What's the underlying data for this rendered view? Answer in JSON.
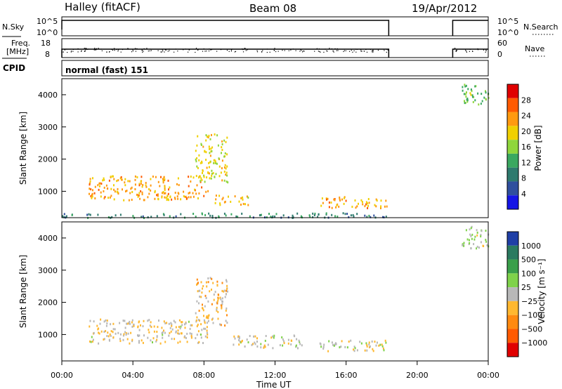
{
  "header": {
    "site": "Halley (fitACF)",
    "beam": "Beam 08",
    "date": "19/Apr/2012"
  },
  "panels": {
    "nsky": {
      "left_label": "N.Sky",
      "right_label": "N.Search",
      "left_ticks": [
        "10^5",
        "10^0"
      ],
      "right_ticks": [
        "10^5",
        "10^0"
      ]
    },
    "freq": {
      "left_label_1": "Freq.",
      "left_label_2": "[MHz]",
      "right_label": "Nave",
      "left_ticks": [
        "18",
        "8"
      ],
      "right_ticks": [
        "60",
        "0"
      ]
    },
    "cpid": {
      "label": "CPID",
      "value": "normal (fast) 151"
    }
  },
  "colorbars": {
    "power": {
      "label": "Power [dB]",
      "ticks": [
        "28",
        "24",
        "20",
        "16",
        "12",
        "8",
        "4"
      ],
      "colors": [
        "#e00000",
        "#ff5a00",
        "#ff9a10",
        "#f0d000",
        "#8fd63c",
        "#3aa860",
        "#2e7a6e",
        "#2f4f9e",
        "#1515e6"
      ]
    },
    "velocity": {
      "label": "Velocity [m s⁻¹]",
      "ticks": [
        "1000",
        "500",
        "100",
        "25",
        "−25",
        "−100",
        "−500",
        "−1000"
      ],
      "colors": [
        "#1f3fa6",
        "#2a7a60",
        "#3a9f4a",
        "#7fd24a",
        "#b8b8b8",
        "#ffb830",
        "#ff8a10",
        "#ff5a00",
        "#e00000"
      ]
    }
  },
  "axes": {
    "ylabel": "Slant Range [km]",
    "xlabel": "Time UT",
    "y_ticks": [
      "1000",
      "2000",
      "3000",
      "4000"
    ],
    "x_ticks": [
      "00:00",
      "04:00",
      "08:00",
      "12:00",
      "16:00",
      "20:00",
      "00:00"
    ]
  },
  "chart_data": {
    "type": "heatmap",
    "title": "Halley (fitACF) Beam 08 19/Apr/2012",
    "xlabel": "Time UT",
    "ylabel": "Slant Range [km]",
    "x_range_hours": [
      0,
      24
    ],
    "ylim": [
      180,
      4500
    ],
    "data_gap_hours": [
      18.4,
      22.0
    ],
    "series": [
      {
        "name": "Power [dB]",
        "color_range": [
          0,
          30
        ],
        "regions": [
          {
            "t0": 1.5,
            "t1": 8.2,
            "r0": 750,
            "r1": 1500,
            "value": 22
          },
          {
            "t0": 7.5,
            "t1": 9.3,
            "r0": 1300,
            "r1": 2800,
            "value": 18
          },
          {
            "t0": 8.5,
            "t1": 10.5,
            "r0": 600,
            "r1": 900,
            "value": 20
          },
          {
            "t0": 14.5,
            "t1": 18.3,
            "r0": 500,
            "r1": 850,
            "value": 22
          },
          {
            "t0": 0,
            "t1": 18.3,
            "r0": 200,
            "r1": 350,
            "value": 8
          },
          {
            "t0": 22.5,
            "t1": 24,
            "r0": 3700,
            "r1": 4400,
            "value": 14
          }
        ]
      },
      {
        "name": "Velocity [m s-1]",
        "color_range": [
          -1000,
          1000
        ],
        "regions": [
          {
            "t0": 1.5,
            "t1": 8.2,
            "r0": 750,
            "r1": 1500,
            "value": -100
          },
          {
            "t0": 7.5,
            "t1": 9.3,
            "r0": 1300,
            "r1": 2800,
            "value": -200
          },
          {
            "t0": 9.5,
            "t1": 13.5,
            "r0": 600,
            "r1": 1000,
            "value": 0
          },
          {
            "t0": 14.5,
            "t1": 18.3,
            "r0": 500,
            "r1": 850,
            "value": 0
          },
          {
            "t0": 22.5,
            "t1": 24,
            "r0": 3700,
            "r1": 4400,
            "value": 100
          }
        ]
      }
    ]
  }
}
